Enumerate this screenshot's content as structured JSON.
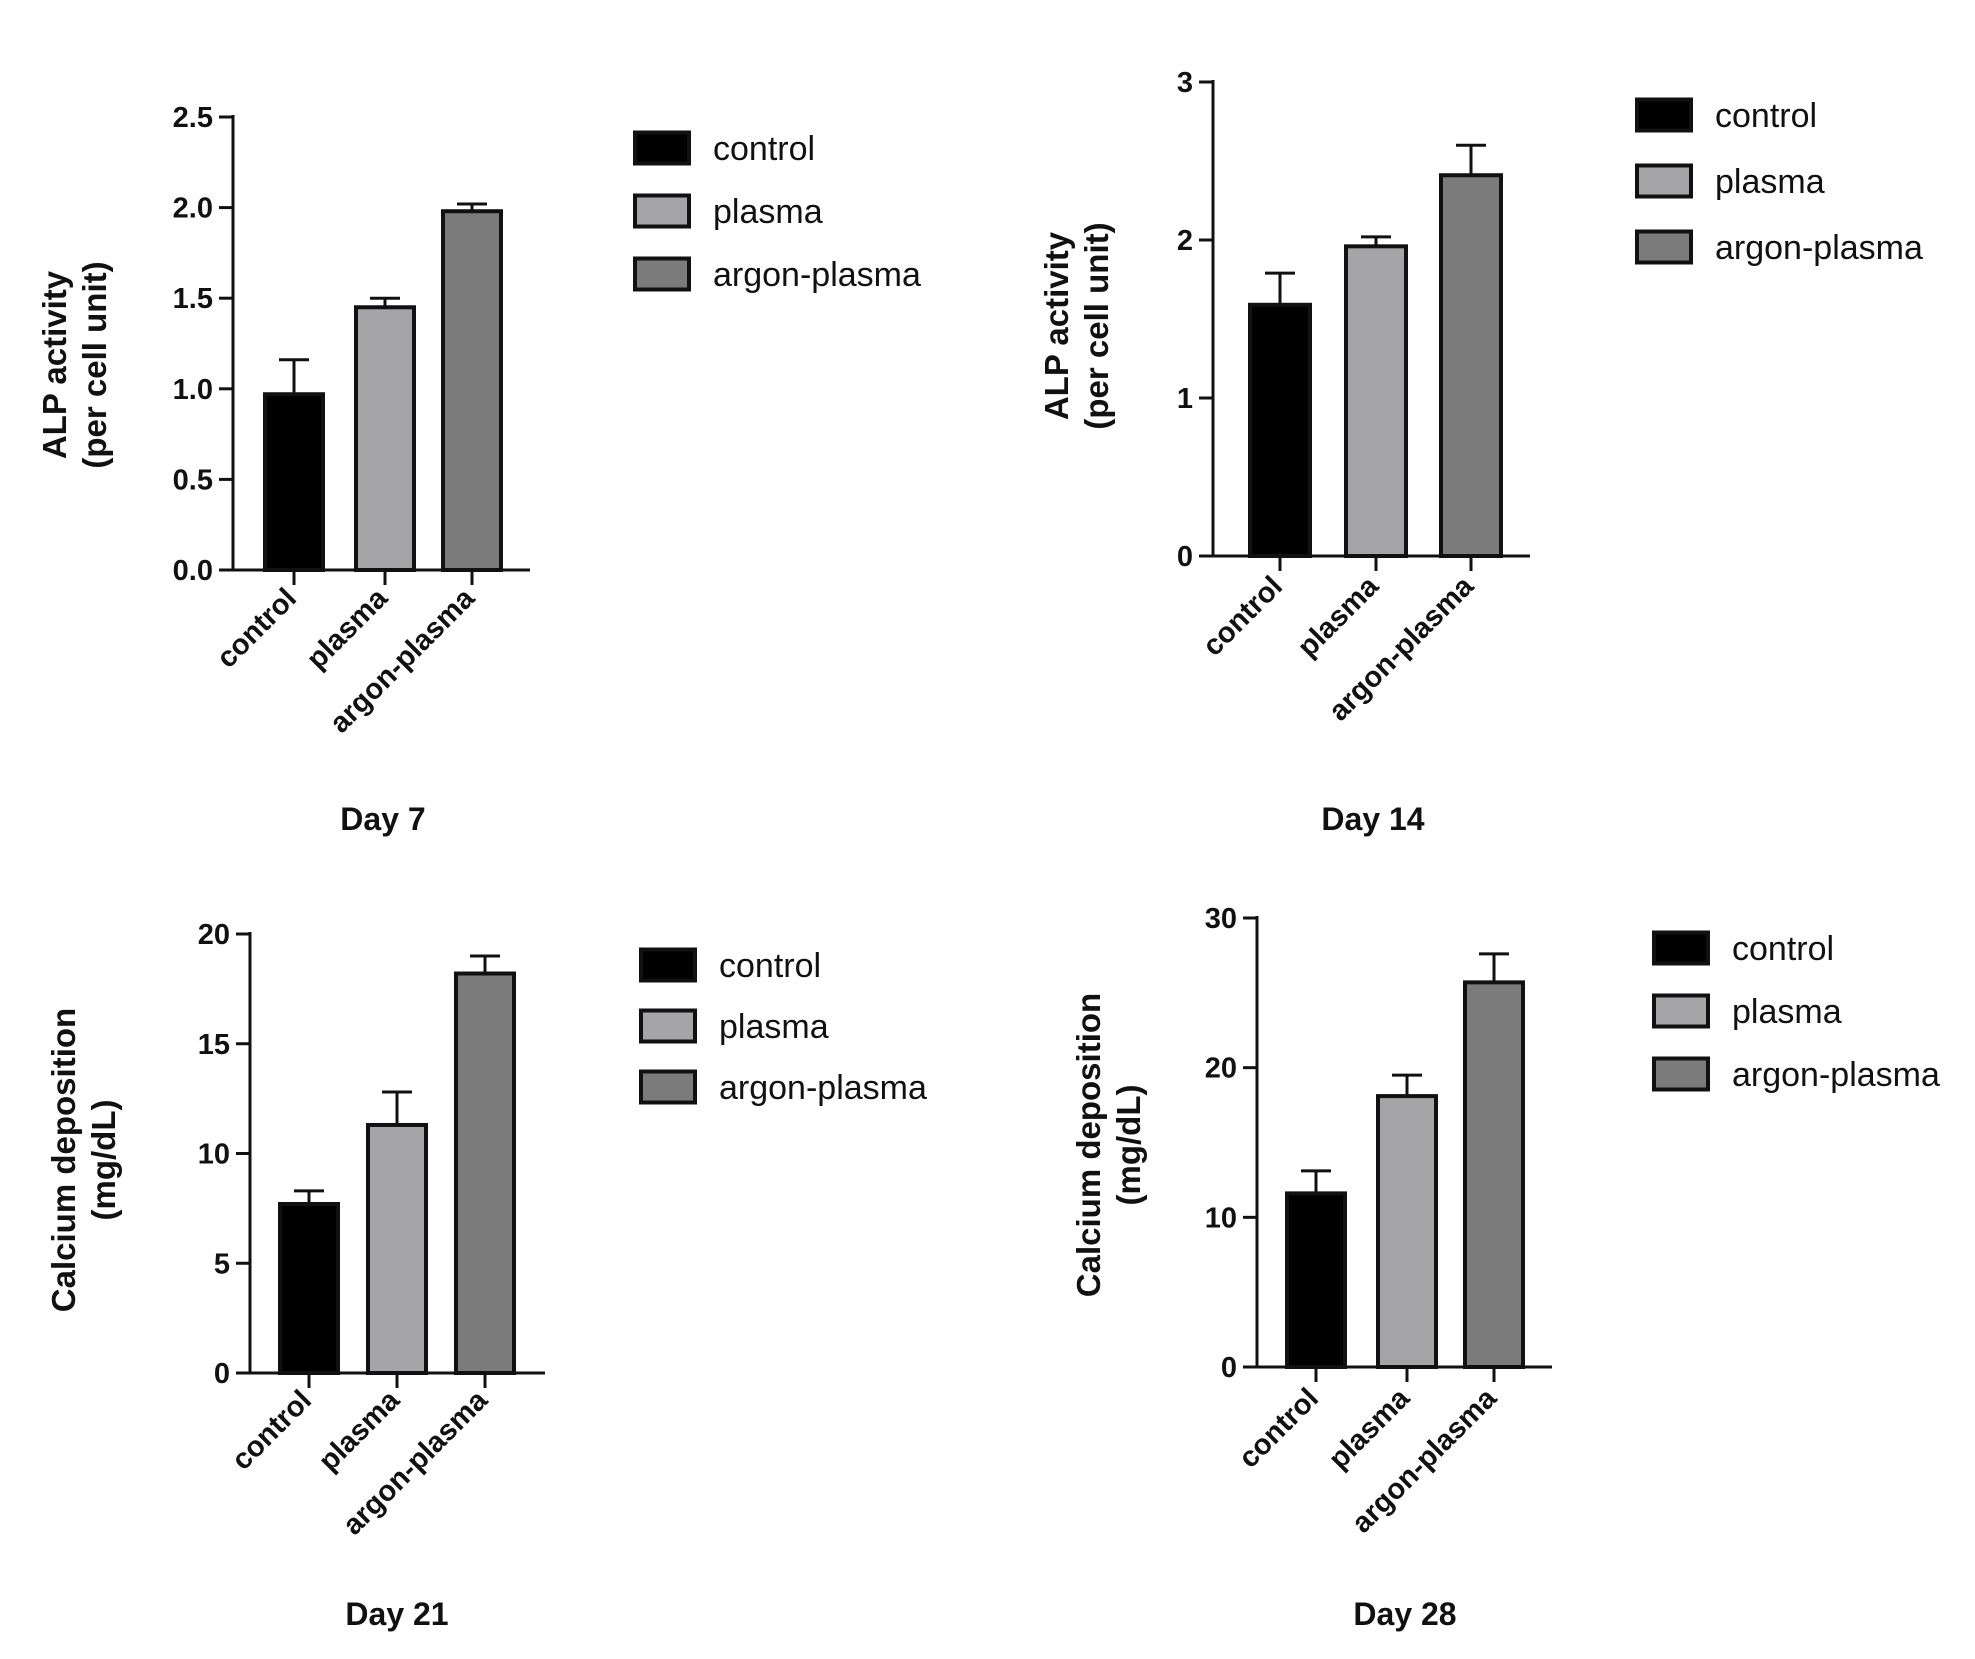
{
  "colors": {
    "control": "#000000",
    "plasma": "#a5a5a8",
    "argon-plasma": "#7b7b7b",
    "axis": "#111111"
  },
  "chart_data": [
    {
      "type": "bar",
      "title": "Day 7",
      "ylabel": [
        "ALP activity",
        "(per cell unit)"
      ],
      "categories": [
        "control",
        "plasma",
        "argon-plasma"
      ],
      "values": [
        0.97,
        1.45,
        1.98
      ],
      "errors": [
        0.19,
        0.05,
        0.04
      ],
      "ylim": [
        0,
        2.5
      ],
      "yticks": [
        "0.0",
        "0.5",
        "1.0",
        "1.5",
        "2.0",
        "2.5"
      ],
      "legend": [
        "control",
        "plasma",
        "argon-plasma"
      ],
      "legend_position": "right"
    },
    {
      "type": "bar",
      "title": "Day 14",
      "ylabel": [
        "ALP activity",
        "(per cell unit)"
      ],
      "categories": [
        "control",
        "plasma",
        "argon-plasma"
      ],
      "values": [
        1.59,
        1.96,
        2.41
      ],
      "errors": [
        0.2,
        0.06,
        0.19
      ],
      "ylim": [
        0,
        3
      ],
      "yticks": [
        "0",
        "1",
        "2",
        "3"
      ],
      "legend": [
        "control",
        "plasma",
        "argon-plasma"
      ],
      "legend_position": "right"
    },
    {
      "type": "bar",
      "title": "Day 21",
      "ylabel": [
        "Calcium deposition",
        "(mg/dL)"
      ],
      "categories": [
        "control",
        "plasma",
        "argon-plasma"
      ],
      "values": [
        7.7,
        11.3,
        18.2
      ],
      "errors": [
        0.6,
        1.5,
        0.8
      ],
      "ylim": [
        0,
        20
      ],
      "yticks": [
        "0",
        "5",
        "10",
        "15",
        "20"
      ],
      "legend": [
        "control",
        "plasma",
        "argon-plasma"
      ],
      "legend_position": "right"
    },
    {
      "type": "bar",
      "title": "Day 28",
      "ylabel": [
        "Calcium deposition",
        "(mg/dL)"
      ],
      "categories": [
        "control",
        "plasma",
        "argon-plasma"
      ],
      "values": [
        11.6,
        18.1,
        25.7
      ],
      "errors": [
        1.5,
        1.4,
        1.9
      ],
      "ylim": [
        0,
        30
      ],
      "yticks": [
        "0",
        "10",
        "20",
        "30"
      ],
      "legend": [
        "control",
        "plasma",
        "argon-plasma"
      ],
      "legend_position": "right"
    }
  ]
}
